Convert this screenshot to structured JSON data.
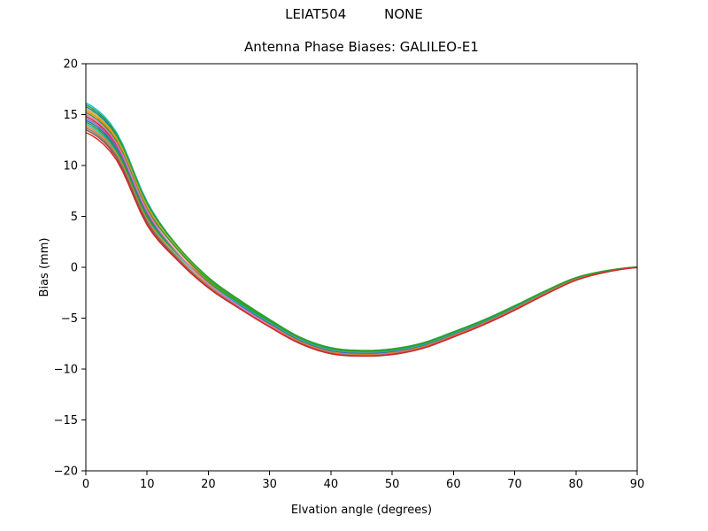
{
  "figure": {
    "suptitle": "LEIAT504         NONE",
    "background_color": "#ffffff"
  },
  "chart_data": {
    "type": "line",
    "title": "Antenna Phase Biases: GALILEO-E1",
    "xlabel": "Elvation angle (degrees)",
    "ylabel": "Bias (mm)",
    "xlim": [
      0,
      90
    ],
    "ylim": [
      -20,
      20
    ],
    "grid": false,
    "legend_position": "none",
    "axis_color": "#000000",
    "x_ticks": [
      0,
      10,
      20,
      30,
      40,
      50,
      60,
      70,
      80,
      90
    ],
    "x_tick_labels": [
      "0",
      "10",
      "20",
      "30",
      "40",
      "50",
      "60",
      "70",
      "80",
      "90"
    ],
    "y_ticks": [
      20,
      15,
      10,
      5,
      0,
      -5,
      -10,
      -15,
      -20
    ],
    "y_tick_labels": [
      "20",
      "15",
      "10",
      "5",
      "0",
      "−5",
      "−10",
      "−15",
      "−20"
    ],
    "x": [
      0,
      5,
      10,
      15,
      20,
      25,
      30,
      35,
      40,
      45,
      50,
      55,
      60,
      65,
      70,
      75,
      80,
      85,
      90
    ],
    "center_values": [
      14.7,
      11.9,
      5.3,
      1.4,
      -1.5,
      -3.6,
      -5.5,
      -7.2,
      -8.2,
      -8.45,
      -8.3,
      -7.7,
      -6.6,
      -5.4,
      -4.0,
      -2.5,
      -1.15,
      -0.4,
      0.0
    ],
    "spread_half_width_mm": [
      1.45,
      1.35,
      1.15,
      0.75,
      0.55,
      0.45,
      0.38,
      0.32,
      0.3,
      0.28,
      0.28,
      0.27,
      0.26,
      0.24,
      0.22,
      0.18,
      0.13,
      0.07,
      0.02
    ],
    "series": [
      {
        "color": "#17becf",
        "offset_low_elev": 1.0,
        "offset_high_elev": 0.3
      },
      {
        "color": "#1f77b4",
        "offset_low_elev": 0.74,
        "offset_high_elev": 0.15
      },
      {
        "color": "#bcbd22",
        "offset_low_elev": 0.61,
        "offset_high_elev": 0.55
      },
      {
        "color": "#ff7f0e",
        "offset_low_elev": 0.48,
        "offset_high_elev": 0.0
      },
      {
        "color": "#d62728",
        "offset_low_elev": 0.09,
        "offset_high_elev": -0.55
      },
      {
        "color": "#9467bd",
        "offset_low_elev": -0.04,
        "offset_high_elev": -0.25
      },
      {
        "color": "#1f77b4",
        "offset_low_elev": -0.17,
        "offset_high_elev": -0.1
      },
      {
        "color": "#17becf",
        "offset_low_elev": -0.43,
        "offset_high_elev": 0.45
      },
      {
        "color": "#ff7f0e",
        "offset_low_elev": -0.56,
        "offset_high_elev": -0.4
      },
      {
        "color": "#7f7f7f",
        "offset_low_elev": -0.69,
        "offset_high_elev": -0.7
      },
      {
        "color": "#2ca02c",
        "offset_low_elev": 0.87,
        "offset_high_elev": 1.0
      },
      {
        "color": "#2ca02c",
        "offset_low_elev": 0.35,
        "offset_high_elev": 0.85
      },
      {
        "color": "#2ca02c",
        "offset_low_elev": -0.3,
        "offset_high_elev": 0.7
      },
      {
        "color": "#e377c2",
        "offset_low_elev": 0.22,
        "offset_high_elev": -0.85
      },
      {
        "color": "#8c564b",
        "offset_low_elev": -0.82,
        "offset_high_elev": -1.0
      },
      {
        "color": "#d62728",
        "offset_low_elev": -1.0,
        "offset_high_elev": -0.9
      }
    ]
  }
}
